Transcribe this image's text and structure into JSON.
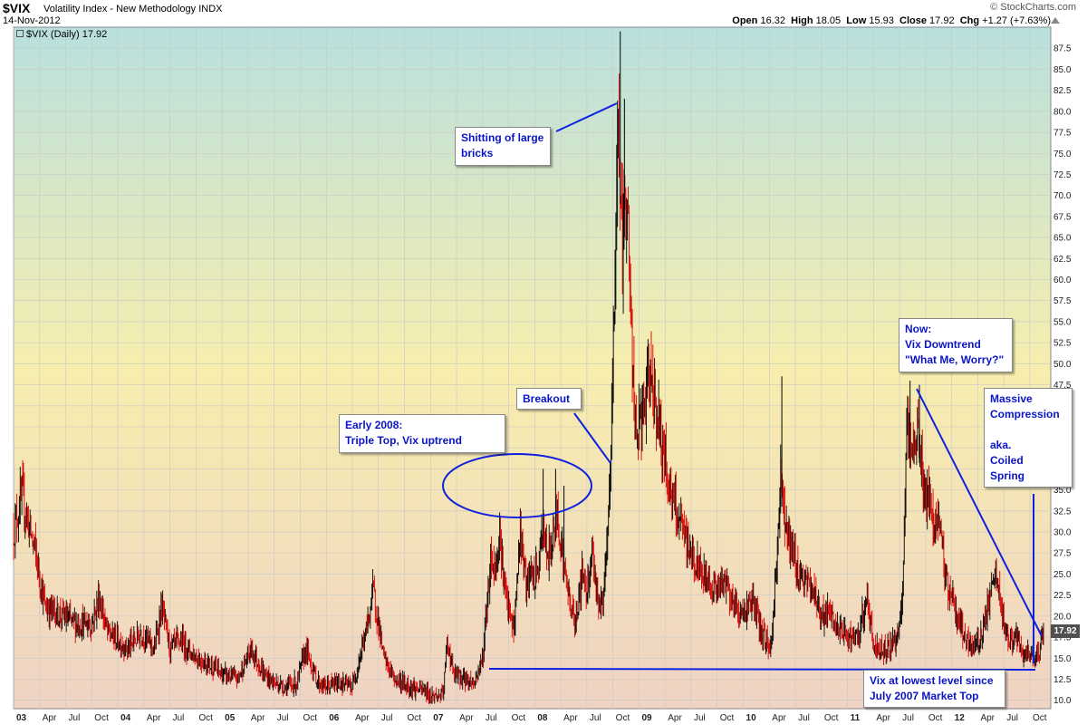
{
  "header": {
    "ticker": "$VIX",
    "name": "Volatility Index - New Methodology INDX",
    "date": "14-Nov-2012",
    "brand": "© StockCharts.com",
    "open_label": "Open",
    "open": "16.32",
    "high_label": "High",
    "high": "18.05",
    "low_label": "Low",
    "low": "15.93",
    "close_label": "Close",
    "close": "17.92",
    "chg_label": "Chg",
    "chg": "+1.27 (+7.63%)"
  },
  "legend": {
    "label": "$VIX (Daily) 17.92"
  },
  "last_value_tag": "17.92",
  "colors": {
    "up": "#000000",
    "down": "#dd0000",
    "annotation": "#0a14c8",
    "grid": "#c8c8c8"
  },
  "chart_data": {
    "type": "line",
    "title": "$VIX (Daily) 17.92",
    "xlabel": "",
    "ylabel": "",
    "ylim": [
      9,
      90
    ],
    "xlim": [
      2003.0,
      2012.95
    ],
    "y_ticks": [
      "10.0",
      "12.5",
      "15.0",
      "17.5",
      "20.0",
      "22.5",
      "25.0",
      "27.5",
      "30.0",
      "32.5",
      "35.0",
      "37.5",
      "40.0",
      "42.5",
      "45.0",
      "47.5",
      "50.0",
      "52.5",
      "55.0",
      "57.5",
      "60.0",
      "62.5",
      "65.0",
      "67.5",
      "70.0",
      "72.5",
      "75.0",
      "77.5",
      "80.0",
      "82.5",
      "85.0",
      "87.5"
    ],
    "x_ticks": [
      {
        "t": 2003.0,
        "label": "03",
        "year": true
      },
      {
        "t": 2003.25,
        "label": "Apr"
      },
      {
        "t": 2003.5,
        "label": "Jul"
      },
      {
        "t": 2003.75,
        "label": "Oct"
      },
      {
        "t": 2004.0,
        "label": "04",
        "year": true
      },
      {
        "t": 2004.25,
        "label": "Apr"
      },
      {
        "t": 2004.5,
        "label": "Jul"
      },
      {
        "t": 2004.75,
        "label": "Oct"
      },
      {
        "t": 2005.0,
        "label": "05",
        "year": true
      },
      {
        "t": 2005.25,
        "label": "Apr"
      },
      {
        "t": 2005.5,
        "label": "Jul"
      },
      {
        "t": 2005.75,
        "label": "Oct"
      },
      {
        "t": 2006.0,
        "label": "06",
        "year": true
      },
      {
        "t": 2006.25,
        "label": "Apr"
      },
      {
        "t": 2006.5,
        "label": "Jul"
      },
      {
        "t": 2006.75,
        "label": "Oct"
      },
      {
        "t": 2007.0,
        "label": "07",
        "year": true
      },
      {
        "t": 2007.25,
        "label": "Apr"
      },
      {
        "t": 2007.5,
        "label": "Jul"
      },
      {
        "t": 2007.75,
        "label": "Oct"
      },
      {
        "t": 2008.0,
        "label": "08",
        "year": true
      },
      {
        "t": 2008.25,
        "label": "Apr"
      },
      {
        "t": 2008.5,
        "label": "Jul"
      },
      {
        "t": 2008.75,
        "label": "Oct"
      },
      {
        "t": 2009.0,
        "label": "09",
        "year": true
      },
      {
        "t": 2009.25,
        "label": "Apr"
      },
      {
        "t": 2009.5,
        "label": "Jul"
      },
      {
        "t": 2009.75,
        "label": "Oct"
      },
      {
        "t": 2010.0,
        "label": "10",
        "year": true
      },
      {
        "t": 2010.25,
        "label": "Apr"
      },
      {
        "t": 2010.5,
        "label": "Jul"
      },
      {
        "t": 2010.75,
        "label": "Oct"
      },
      {
        "t": 2011.0,
        "label": "11",
        "year": true
      },
      {
        "t": 2011.25,
        "label": "Apr"
      },
      {
        "t": 2011.5,
        "label": "Jul"
      },
      {
        "t": 2011.75,
        "label": "Oct"
      },
      {
        "t": 2012.0,
        "label": "12",
        "year": true
      },
      {
        "t": 2012.25,
        "label": "Apr"
      },
      {
        "t": 2012.5,
        "label": "Jul"
      },
      {
        "t": 2012.75,
        "label": "Oct"
      }
    ],
    "series": [
      {
        "values": [
          [
            2003.0,
            30
          ],
          [
            2003.08,
            34
          ],
          [
            2003.2,
            28
          ],
          [
            2003.3,
            21
          ],
          [
            2003.45,
            20
          ],
          [
            2003.6,
            19
          ],
          [
            2003.75,
            19
          ],
          [
            2003.82,
            22
          ],
          [
            2003.9,
            18
          ],
          [
            2004.0,
            17
          ],
          [
            2004.1,
            16
          ],
          [
            2004.22,
            18
          ],
          [
            2004.35,
            16
          ],
          [
            2004.42,
            21
          ],
          [
            2004.5,
            16
          ],
          [
            2004.6,
            17
          ],
          [
            2004.75,
            15
          ],
          [
            2004.9,
            14
          ],
          [
            2005.0,
            13
          ],
          [
            2005.15,
            12.5
          ],
          [
            2005.28,
            16
          ],
          [
            2005.4,
            13
          ],
          [
            2005.5,
            12
          ],
          [
            2005.62,
            11.5
          ],
          [
            2005.72,
            12
          ],
          [
            2005.8,
            16
          ],
          [
            2005.92,
            12
          ],
          [
            2006.0,
            11.5
          ],
          [
            2006.12,
            12
          ],
          [
            2006.25,
            11.5
          ],
          [
            2006.38,
            18
          ],
          [
            2006.45,
            23
          ],
          [
            2006.55,
            15
          ],
          [
            2006.65,
            12.5
          ],
          [
            2006.8,
            11.5
          ],
          [
            2006.95,
            11
          ],
          [
            2007.0,
            10.5
          ],
          [
            2007.12,
            10.5
          ],
          [
            2007.16,
            17
          ],
          [
            2007.22,
            13
          ],
          [
            2007.32,
            12.5
          ],
          [
            2007.42,
            12
          ],
          [
            2007.5,
            15
          ],
          [
            2007.58,
            27
          ],
          [
            2007.62,
            25
          ],
          [
            2007.66,
            30
          ],
          [
            2007.72,
            22
          ],
          [
            2007.8,
            18
          ],
          [
            2007.86,
            30
          ],
          [
            2007.92,
            23
          ],
          [
            2007.97,
            25
          ],
          [
            2008.0,
            24
          ],
          [
            2008.05,
            27
          ],
          [
            2008.08,
            31
          ],
          [
            2008.12,
            26
          ],
          [
            2008.18,
            30
          ],
          [
            2008.22,
            32
          ],
          [
            2008.3,
            24
          ],
          [
            2008.38,
            19
          ],
          [
            2008.46,
            25
          ],
          [
            2008.5,
            23
          ],
          [
            2008.55,
            28
          ],
          [
            2008.6,
            22
          ],
          [
            2008.64,
            21
          ],
          [
            2008.68,
            25
          ],
          [
            2008.72,
            35
          ],
          [
            2008.76,
            55
          ],
          [
            2008.8,
            80
          ],
          [
            2008.84,
            62
          ],
          [
            2008.88,
            72
          ],
          [
            2008.92,
            55
          ],
          [
            2008.96,
            42
          ],
          [
            2009.0,
            42
          ],
          [
            2009.06,
            45
          ],
          [
            2009.12,
            49
          ],
          [
            2009.17,
            44
          ],
          [
            2009.25,
            38
          ],
          [
            2009.33,
            33
          ],
          [
            2009.42,
            30
          ],
          [
            2009.5,
            27
          ],
          [
            2009.58,
            25
          ],
          [
            2009.67,
            24
          ],
          [
            2009.75,
            23
          ],
          [
            2009.83,
            24
          ],
          [
            2009.92,
            21
          ],
          [
            2010.0,
            20
          ],
          [
            2010.08,
            22
          ],
          [
            2010.17,
            18
          ],
          [
            2010.27,
            16
          ],
          [
            2010.36,
            36
          ],
          [
            2010.42,
            30
          ],
          [
            2010.5,
            26
          ],
          [
            2010.58,
            24
          ],
          [
            2010.67,
            23
          ],
          [
            2010.75,
            20
          ],
          [
            2010.83,
            20
          ],
          [
            2010.92,
            18
          ],
          [
            2011.0,
            17.5
          ],
          [
            2011.1,
            17
          ],
          [
            2011.18,
            22
          ],
          [
            2011.26,
            16
          ],
          [
            2011.36,
            16
          ],
          [
            2011.46,
            17
          ],
          [
            2011.52,
            20
          ],
          [
            2011.57,
            42
          ],
          [
            2011.62,
            38
          ],
          [
            2011.67,
            43
          ],
          [
            2011.72,
            36
          ],
          [
            2011.8,
            32
          ],
          [
            2011.88,
            30
          ],
          [
            2011.95,
            24
          ],
          [
            2012.0,
            22
          ],
          [
            2012.08,
            19
          ],
          [
            2012.17,
            16
          ],
          [
            2012.27,
            17
          ],
          [
            2012.37,
            22
          ],
          [
            2012.42,
            25
          ],
          [
            2012.48,
            20
          ],
          [
            2012.55,
            17
          ],
          [
            2012.62,
            17
          ],
          [
            2012.7,
            15
          ],
          [
            2012.78,
            15
          ],
          [
            2012.84,
            16
          ],
          [
            2012.88,
            17.9
          ]
        ]
      }
    ],
    "annotations": [
      {
        "text": "Shitting of large\nbricks"
      },
      {
        "text": "Breakout"
      },
      {
        "text": "Early 2008:\nTriple Top, Vix uptrend"
      },
      {
        "text": "Now:\nVix Downtrend\n\"What Me, Worry?\""
      },
      {
        "text": "Massive\nCompression\n\naka.\nCoiled\nSpring"
      },
      {
        "text": "Vix at lowest level since\nJuly 2007 Market Top"
      }
    ]
  }
}
